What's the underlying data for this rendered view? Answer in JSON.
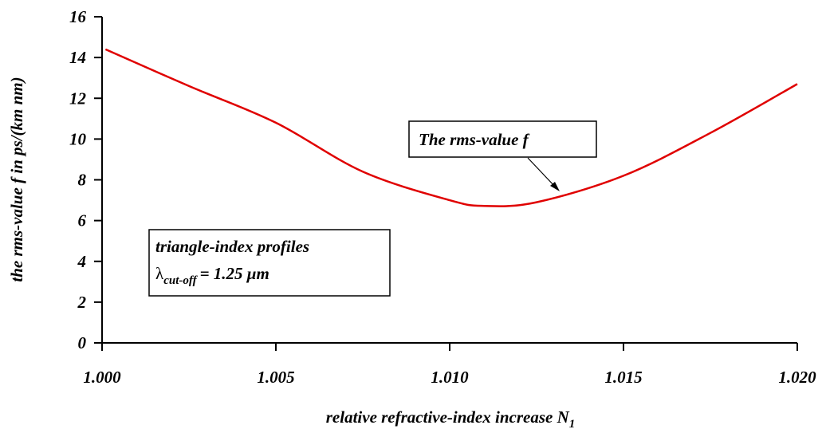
{
  "chart_data": {
    "type": "line",
    "xlabel": {
      "text": "relative refractive-index increase N",
      "subscript": "1"
    },
    "ylabel": "the rms-value f in ps/(km nm)",
    "x": [
      1.0001,
      1.0025,
      1.005,
      1.0075,
      1.01,
      1.011,
      1.0125,
      1.015,
      1.0175,
      1.02
    ],
    "series": [
      {
        "name": "The rms-value f",
        "color": "#e00000",
        "values": [
          14.4,
          12.6,
          10.8,
          8.4,
          7.0,
          6.72,
          6.9,
          8.2,
          10.3,
          12.7
        ]
      }
    ],
    "xlim": [
      1.0,
      1.02
    ],
    "xticks": [
      {
        "value": 1.0,
        "label": "1.000"
      },
      {
        "value": 1.005,
        "label": "1.005"
      },
      {
        "value": 1.01,
        "label": "1.010"
      },
      {
        "value": 1.015,
        "label": "1.015"
      },
      {
        "value": 1.02,
        "label": "1.020"
      }
    ],
    "ylim": [
      0,
      16
    ],
    "yticks": [
      0,
      2,
      4,
      6,
      8,
      10,
      12,
      14,
      16
    ],
    "annotations": {
      "profile": "triangle-index profiles",
      "cutoff": {
        "symbol": "λ",
        "subscript": "cut-off",
        "text": "= 1.25 μm"
      }
    }
  }
}
